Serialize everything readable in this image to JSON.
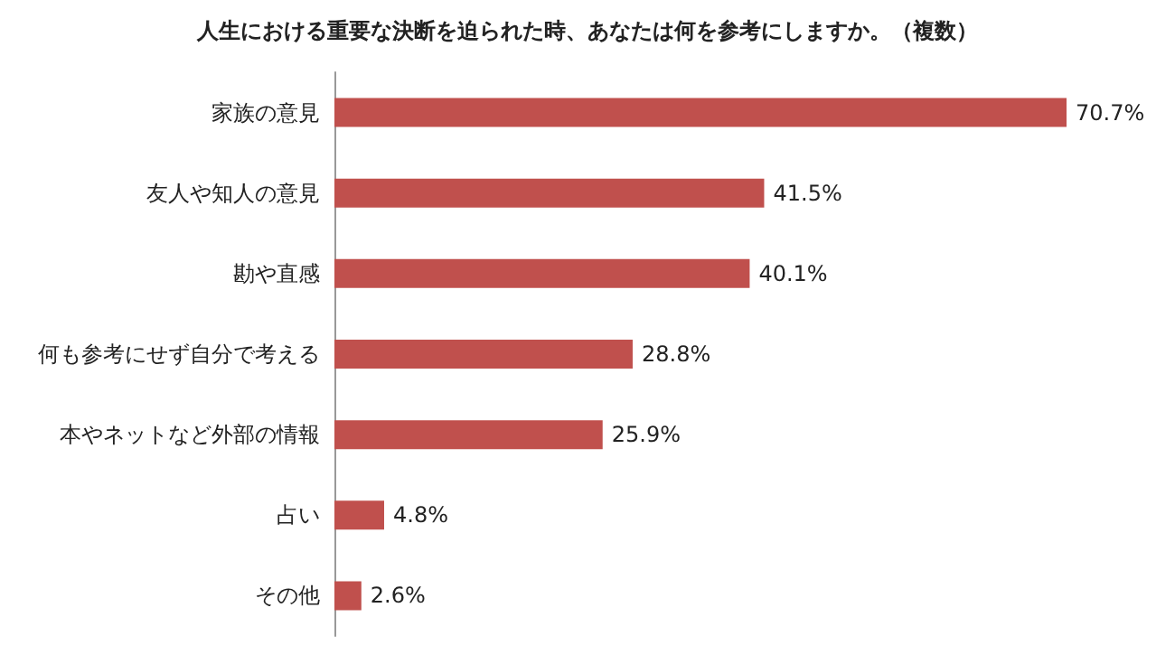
{
  "chart_data": {
    "type": "bar",
    "orientation": "horizontal",
    "title": "人生における重要な決断を迫られた時、あなたは何を参考にしますか。（複数）",
    "categories": [
      "家族の意見",
      "友人や知人の意見",
      "勘や直感",
      "何も参考にせず自分で考える",
      "本やネットなど外部の情報",
      "占い",
      "その他"
    ],
    "values": [
      70.7,
      41.5,
      40.1,
      28.8,
      25.9,
      4.8,
      2.6
    ],
    "value_labels": [
      "70.7%",
      "41.5%",
      "40.1%",
      "28.8%",
      "25.9%",
      "4.8%",
      "2.6%"
    ],
    "color": "#c0504d"
  }
}
